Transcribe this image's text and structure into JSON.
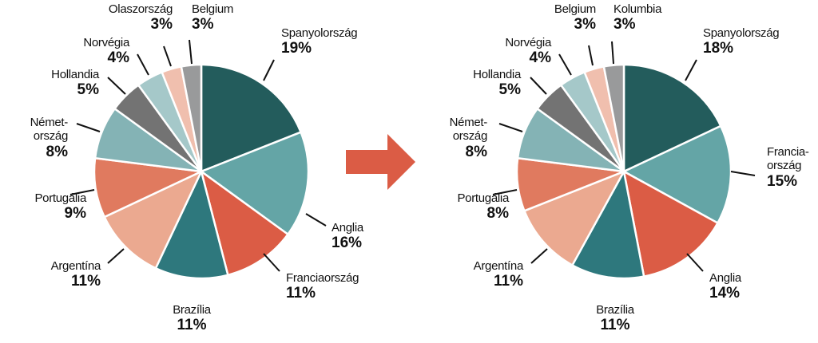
{
  "chart_data": [
    {
      "type": "pie",
      "title": "",
      "colors": [
        "#235c5c",
        "#64a5a6",
        "#db5c45",
        "#2e787d",
        "#eba990",
        "#e07a5f",
        "#84b3b5",
        "#737373",
        "#a5c8c9",
        "#f0bfae",
        "#999a9b"
      ],
      "slices": [
        {
          "label": "Spanyolország",
          "value": 19,
          "pct": "19%"
        },
        {
          "label": "Anglia",
          "value": 16,
          "pct": "16%"
        },
        {
          "label": "Franciaország",
          "value": 11,
          "pct": "11%"
        },
        {
          "label": "Brazília",
          "value": 11,
          "pct": "11%"
        },
        {
          "label": "Argentína",
          "value": 11,
          "pct": "11%"
        },
        {
          "label": "Portugália",
          "value": 9,
          "pct": "9%"
        },
        {
          "label": "Német-\nország",
          "value": 8,
          "pct": "8%"
        },
        {
          "label": "Hollandia",
          "value": 5,
          "pct": "5%"
        },
        {
          "label": "Norvégia",
          "value": 4,
          "pct": "4%"
        },
        {
          "label": "Olaszország",
          "value": 3,
          "pct": "3%"
        },
        {
          "label": "Belgium",
          "value": 3,
          "pct": "3%"
        }
      ]
    },
    {
      "type": "pie",
      "title": "",
      "colors": [
        "#235c5c",
        "#64a5a6",
        "#db5c45",
        "#2e787d",
        "#eba990",
        "#e07a5f",
        "#84b3b5",
        "#737373",
        "#a5c8c9",
        "#f0bfae",
        "#999a9b"
      ],
      "slices": [
        {
          "label": "Spanyolország",
          "value": 18,
          "pct": "18%"
        },
        {
          "label": "Francia-\nország",
          "value": 15,
          "pct": "15%"
        },
        {
          "label": "Anglia",
          "value": 14,
          "pct": "14%"
        },
        {
          "label": "Brazília",
          "value": 11,
          "pct": "11%"
        },
        {
          "label": "Argentína",
          "value": 11,
          "pct": "11%"
        },
        {
          "label": "Portugália",
          "value": 8,
          "pct": "8%"
        },
        {
          "label": "Német-\nország",
          "value": 8,
          "pct": "8%"
        },
        {
          "label": "Hollandia",
          "value": 5,
          "pct": "5%"
        },
        {
          "label": "Norvégia",
          "value": 4,
          "pct": "4%"
        },
        {
          "label": "Belgium",
          "value": 3,
          "pct": "3%"
        },
        {
          "label": "Kolumbia",
          "value": 3,
          "pct": "3%"
        }
      ]
    }
  ],
  "arrow_color": "#db5c45"
}
